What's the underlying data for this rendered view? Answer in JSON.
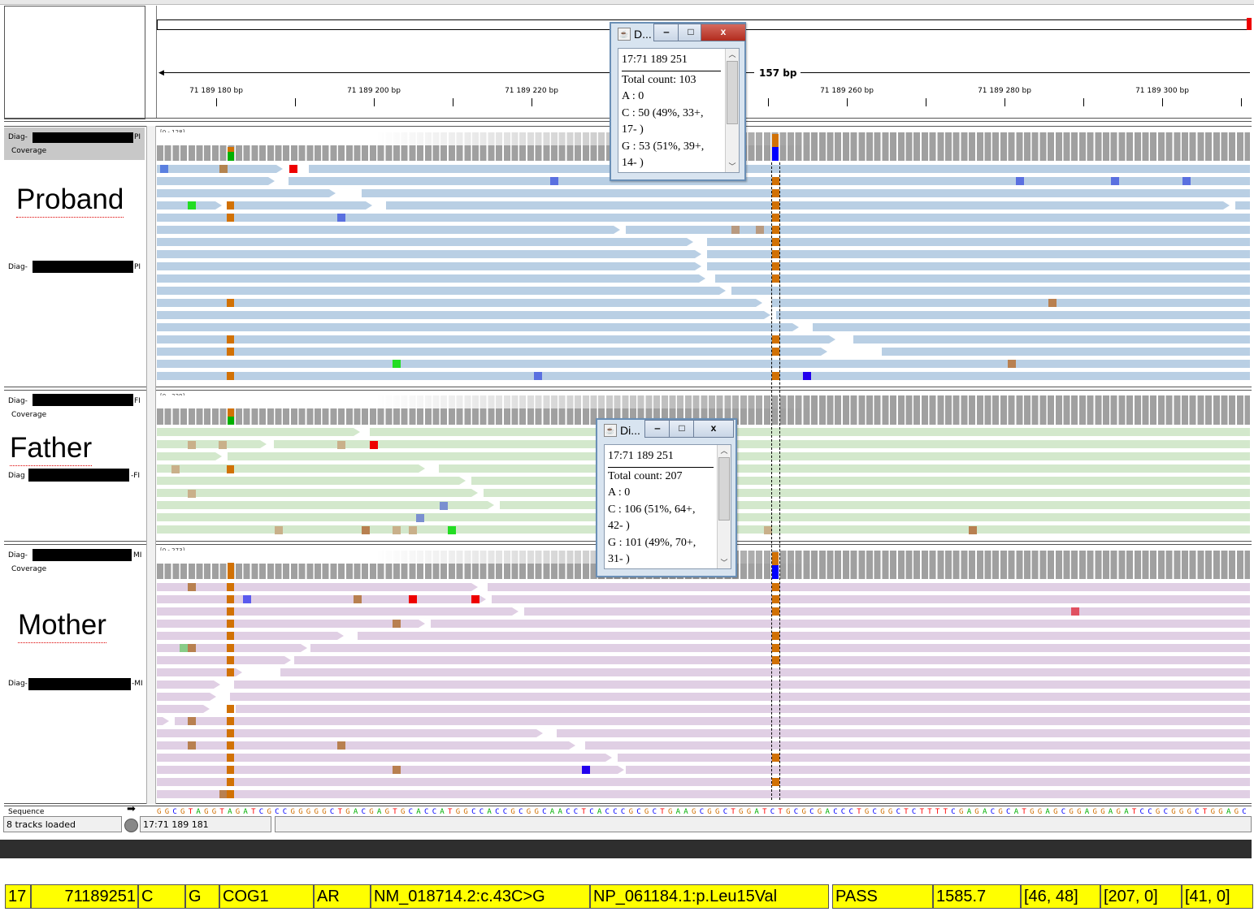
{
  "ruler": {
    "span_label": "157 bp",
    "ticks": [
      {
        "label": "71 189 180 bp",
        "pos": 71189180
      },
      {
        "label": "71 189 200 bp",
        "pos": 71189200
      },
      {
        "label": "71 189 220 bp",
        "pos": 71189220
      },
      {
        "label": "71 189 260 bp",
        "pos": 71189260
      },
      {
        "label": "71 189 280 bp",
        "pos": 71189280
      },
      {
        "label": "71 189 300 bp",
        "pos": 71189300
      }
    ]
  },
  "tracks": {
    "proband": {
      "coverage_label_prefix": "Diag-",
      "coverage_label_suffix": "PI",
      "coverage_word": "Coverage",
      "reads_label_prefix": "Diag-",
      "reads_label_suffix": "PI",
      "annotation": "Proband",
      "range": "[0 - 128]"
    },
    "father": {
      "coverage_label_prefix": "Diag-",
      "coverage_label_suffix": "FI",
      "coverage_word": "Coverage",
      "reads_label_prefix": "Diag",
      "reads_label_suffix": "-FI",
      "annotation": "Father",
      "range": "[0 - 339]"
    },
    "mother": {
      "coverage_label_prefix": "Diag-",
      "coverage_label_suffix": "MI",
      "coverage_word": "Coverage",
      "reads_label_prefix": "Diag-",
      "reads_label_suffix": "-MI",
      "annotation": "Mother",
      "range": "[0 - 273]"
    }
  },
  "popups": [
    {
      "title": "D...",
      "minimize": "‒",
      "maximize": "□",
      "close": "x",
      "lines": [
        "17:71 189 251",
        "Total count: 103",
        "A : 0",
        "C : 50 (49%, 33+,",
        "17- )",
        "G : 53 (51%, 39+,",
        "14- )"
      ]
    },
    {
      "title": "Di...",
      "minimize": "‒",
      "maximize": "□",
      "close": "x",
      "lines": [
        "17:71 189 251",
        "Total count: 207",
        "A : 0",
        "C : 106 (51%, 64+,",
        "42- )",
        "G : 101 (49%, 70+,",
        "31- )"
      ]
    }
  ],
  "sequence": {
    "label": "Sequence",
    "bases": "GGCGTAGGTAGATCGCCGGGGGCTGACGAGTGCACCATGGCCACCGCGGCAACCTCACCCGCGCTGAAGCGGCTGGATCTGCGCGACCCTGCGGCTCTTTTCGAGACGCATGGAGCGGAGGAGATCCGCGGGCTGGAGC"
  },
  "status": {
    "tracks_loaded": "8 tracks loaded",
    "position": "17:71 189 181"
  },
  "variant_row": [
    {
      "key": "chrom",
      "text": "17"
    },
    {
      "key": "pos",
      "text": "71189251"
    },
    {
      "key": "ref",
      "text": "C"
    },
    {
      "key": "alt",
      "text": "G"
    },
    {
      "key": "gene",
      "text": "COG1"
    },
    {
      "key": "inheritance",
      "text": "AR"
    },
    {
      "key": "hgvs_c",
      "text": "NM_018714.2:c.43C>G"
    },
    {
      "key": "hgvs_p",
      "text": "NP_061184.1:p.Leu15Val"
    },
    {
      "key": "filter",
      "text": "PASS"
    },
    {
      "key": "qual",
      "text": "1585.7"
    },
    {
      "key": "gt_proband",
      "text": "[46, 48]"
    },
    {
      "key": "gt_father",
      "text": "[207, 0]"
    },
    {
      "key": "gt_mother",
      "text": "[41, 0]"
    }
  ],
  "colors": {
    "proband_reads": "#b9cfe4",
    "father_reads": "#d3e8cc",
    "mother_reads": "#e0cfe4",
    "coverage": "#a0a0a0",
    "base_A": "#00b000",
    "base_C": "#0000ff",
    "base_G": "#d17105",
    "base_T": "#ff0000",
    "variant_row_bg": "#ffff00"
  }
}
